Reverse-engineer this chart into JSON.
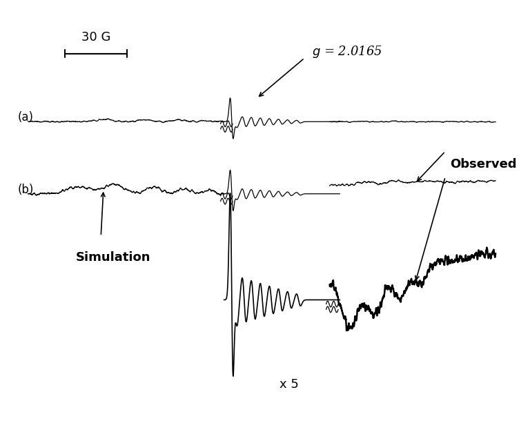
{
  "background_color": "#ffffff",
  "fig_width": 7.68,
  "fig_height": 6.23,
  "dpi": 100,
  "annotation_g": "$g$ = 2.0165",
  "annotation_observed": "Observed",
  "annotation_simulation": "Simulation",
  "annotation_scale": "30 G",
  "annotation_x5": "x 5",
  "label_a": "(a)",
  "label_b": "(b)"
}
